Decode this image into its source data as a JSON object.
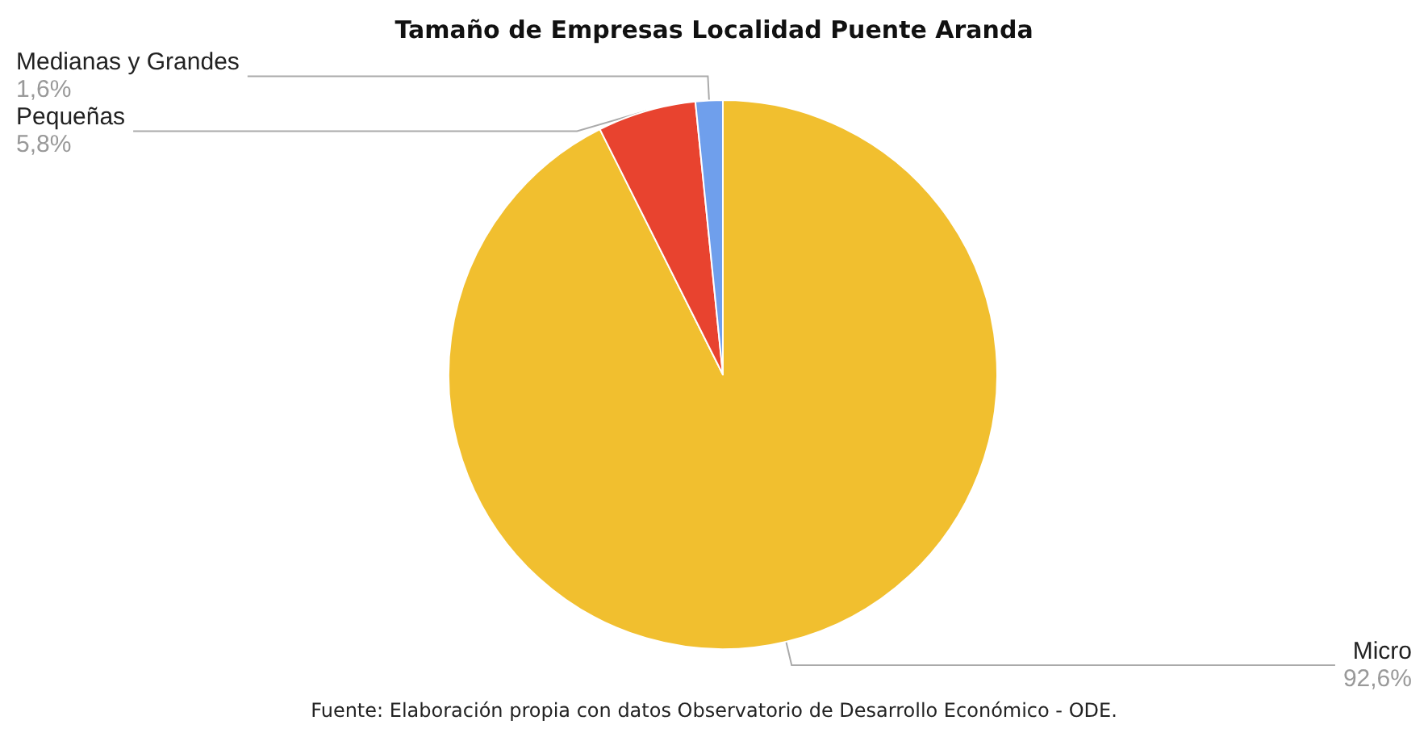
{
  "chart_data": {
    "type": "pie",
    "title": "Tamaño de Empresas Localidad Puente Aranda",
    "categories": [
      "Micro",
      "Pequeñas",
      "Medianas y Grandes"
    ],
    "values": [
      92.6,
      5.8,
      1.6
    ],
    "value_labels": [
      "92,6%",
      "5,8%",
      "1,6%"
    ],
    "colors": [
      "#f1bf2f",
      "#e8432f",
      "#6f9fec"
    ],
    "legend": false,
    "annotations": [
      "Fuente: Elaboración propia con datos Observatorio de Desarrollo Económico - ODE."
    ]
  }
}
